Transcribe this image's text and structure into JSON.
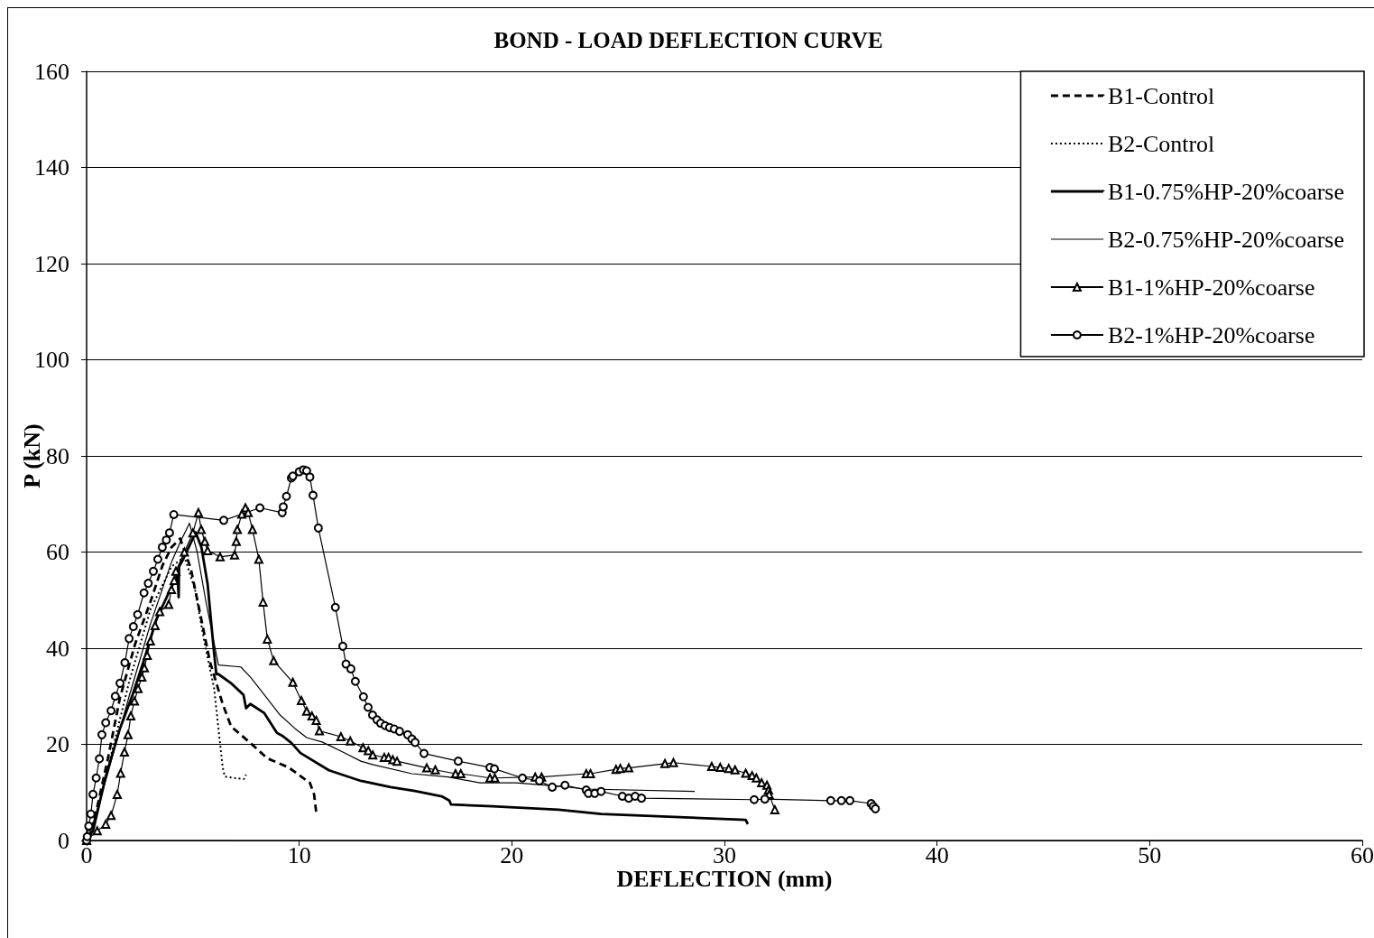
{
  "chart_data": {
    "type": "line",
    "title": "BOND - LOAD DEFLECTION CURVE",
    "xlabel": "DEFLECTION (mm)",
    "ylabel": "P (kN)",
    "xlim": [
      0,
      60
    ],
    "ylim": [
      0,
      160
    ],
    "xticks": [
      0,
      10,
      20,
      30,
      40,
      50,
      60
    ],
    "yticks": [
      0,
      20,
      40,
      60,
      80,
      100,
      120,
      140,
      160
    ],
    "grid": "y",
    "legend": "top right",
    "series": [
      {
        "name": "B1-Control",
        "color": "#000000",
        "line_style": "dashed",
        "marker": "none",
        "x": [
          0,
          0.3,
          1,
          1.57,
          2.29,
          3.0,
          3.56,
          3.99,
          4.4,
          4.9,
          5.4,
          5.8,
          6.4,
          6.8,
          7.7,
          8.5,
          9.5,
          10.5,
          10.7,
          10.8
        ],
        "values": [
          0,
          3,
          17,
          29.7,
          41,
          49.6,
          57.1,
          61,
          62.8,
          56.6,
          45.9,
          37.2,
          28.4,
          23.7,
          20.3,
          17.1,
          15.2,
          12,
          9.6,
          5.8
        ]
      },
      {
        "name": "B2-Control",
        "color": "#000000",
        "line_style": "dotted",
        "marker": "none",
        "x": [
          0,
          0.5,
          1,
          2,
          3,
          4,
          4.6,
          5.1,
          5.55,
          6.0,
          6.2,
          6.4,
          6.5,
          6.96,
          7.4,
          7.5
        ],
        "values": [
          0,
          6,
          15,
          33,
          48,
          57,
          59,
          52.2,
          41,
          31.6,
          23.3,
          15.2,
          13.3,
          13,
          12.8,
          13.7
        ]
      },
      {
        "name": "B1-0.75%HP-20%coarse",
        "color": "#000000",
        "line_style": "solid",
        "marker": "none",
        "x": [
          0,
          0.3,
          0.9,
          1.57,
          2.16,
          2.72,
          3.27,
          3.86,
          4.28,
          4.33,
          4.35,
          4.54,
          5.13,
          5.4,
          5.69,
          5.98,
          6.1,
          6.2,
          6.8,
          7.38,
          7.5,
          7.7,
          8.36,
          8.95,
          9.2,
          9.63,
          10.06,
          11.4,
          12.9,
          14.3,
          15.44,
          16.7,
          17.06,
          17.14,
          19.1,
          22.2,
          24.2,
          31.0,
          31.1
        ],
        "values": [
          0,
          2,
          13.3,
          23.3,
          30.3,
          37.8,
          45.9,
          51.5,
          55.3,
          50.6,
          57,
          58.5,
          64.1,
          61,
          53.4,
          39.7,
          34.6,
          34.6,
          32.7,
          30.3,
          27.5,
          28.4,
          26.5,
          22.4,
          21.8,
          20.3,
          18.2,
          14.6,
          12.4,
          11.1,
          10.3,
          9.2,
          8.3,
          7.5,
          7.1,
          6.4,
          5.5,
          4.3,
          3.4
        ]
      },
      {
        "name": "B2-0.75%HP-20%coarse",
        "color": "#000000",
        "line_style": "solid",
        "marker": "none",
        "x": [
          0,
          0.2,
          1,
          2,
          3,
          4,
          4.4,
          4.84,
          5.2,
          5.6,
          6.2,
          7.25,
          7.7,
          8.36,
          9.1,
          9.8,
          10.35,
          11.07,
          11.5,
          12.05,
          12.9,
          13.45,
          15.3,
          17.0,
          18.5,
          20.2,
          22.2,
          23.5,
          28.6
        ],
        "values": [
          0,
          2,
          14,
          30,
          45,
          58,
          62,
          66,
          60,
          50,
          36.5,
          36.1,
          34,
          30.3,
          26.1,
          23.3,
          21.4,
          20.5,
          19.6,
          18.4,
          16.5,
          15.8,
          13.9,
          13.2,
          12,
          12,
          11.3,
          10.7,
          10.2
        ]
      },
      {
        "name": "B1-1%HP-20%coarse",
        "color": "#000000",
        "line_style": "solid",
        "marker": "triangle",
        "x": [
          0,
          0.5,
          0.9,
          1.15,
          1.44,
          1.6,
          1.78,
          1.95,
          2.08,
          2.25,
          2.42,
          2.6,
          2.72,
          2.85,
          3.0,
          3.22,
          3.44,
          3.86,
          3.99,
          4.12,
          4.2,
          4.6,
          5.0,
          5.26,
          5.39,
          5.56,
          5.69,
          6.28,
          6.96,
          7.04,
          7.09,
          7.3,
          7.47,
          7.6,
          7.8,
          8.1,
          8.3,
          8.5,
          8.8,
          9.7,
          10.1,
          10.35,
          10.6,
          10.8,
          10.95,
          11.96,
          12.4,
          13.0,
          13.25,
          13.46,
          14.0,
          14.2,
          14.4,
          14.6,
          16.0,
          16.4,
          17.35,
          17.6,
          18.97,
          19.2,
          21.1,
          21.4,
          23.5,
          23.7,
          24.9,
          25.1,
          25.5,
          27.2,
          27.6,
          29.4,
          29.8,
          30.2,
          30.5,
          31.0,
          31.3,
          31.5,
          31.75,
          32.0,
          32.07,
          32.1,
          32.37
        ],
        "values": [
          0,
          2,
          3.4,
          5.2,
          9.6,
          14,
          18.4,
          22,
          25.9,
          29,
          31.6,
          34,
          35.9,
          38.5,
          41.5,
          44.7,
          47.6,
          49.1,
          52.2,
          54.1,
          56,
          60,
          64,
          68.2,
          64.7,
          62.2,
          60.3,
          59,
          59.4,
          62.2,
          64.7,
          67.9,
          69.2,
          68.2,
          64.7,
          58.5,
          49.6,
          41.9,
          37.4,
          32.9,
          29.1,
          26.9,
          25.9,
          25,
          22.8,
          21.6,
          20.7,
          19.3,
          18.7,
          17.8,
          17.3,
          17.3,
          16.8,
          16.5,
          15.1,
          14.7,
          13.9,
          13.9,
          13,
          13,
          13.2,
          13.2,
          13.9,
          13.9,
          14.8,
          15,
          15.1,
          16,
          16.2,
          15.4,
          15.2,
          15,
          14.7,
          14,
          13.5,
          13,
          12,
          11.5,
          10.5,
          9.6,
          6.4
        ]
      },
      {
        "name": "B2-1%HP-20%coarse",
        "color": "#000000",
        "line_style": "solid",
        "marker": "circle",
        "x": [
          0,
          0.03,
          0.1,
          0.2,
          0.3,
          0.45,
          0.6,
          0.72,
          0.9,
          1.15,
          1.35,
          1.57,
          1.8,
          2.0,
          2.2,
          2.4,
          2.7,
          2.9,
          3.14,
          3.35,
          3.56,
          3.75,
          3.9,
          4.1,
          6.45,
          8.15,
          9.2,
          9.25,
          9.4,
          9.63,
          9.7,
          10.0,
          10.2,
          10.35,
          10.5,
          10.65,
          10.9,
          11.7,
          12.05,
          12.2,
          12.43,
          12.64,
          13.02,
          13.24,
          13.45,
          13.66,
          13.83,
          14.04,
          14.25,
          14.47,
          14.72,
          15.1,
          15.3,
          15.45,
          15.87,
          17.48,
          18.97,
          19.18,
          20.5,
          21.3,
          21.9,
          22.5,
          23.5,
          23.6,
          23.9,
          24.2,
          25.2,
          25.5,
          25.8,
          26.1,
          31.4,
          31.9,
          35.0,
          35.5,
          35.9,
          36.9,
          37.0,
          37.1
        ],
        "values": [
          0,
          0.8,
          3,
          5.5,
          9.6,
          13,
          17,
          22,
          24.5,
          27,
          30,
          32.7,
          37,
          42,
          44.5,
          47,
          51.5,
          53.5,
          56,
          58.5,
          61,
          62.5,
          64,
          67.8,
          66.6,
          69.2,
          68.2,
          69.4,
          71.6,
          75.4,
          75.8,
          76.7,
          77.1,
          76.9,
          75.6,
          71.8,
          65,
          48.5,
          40.4,
          36.7,
          35.7,
          33.1,
          29.9,
          27.7,
          26.1,
          25.1,
          24.4,
          23.9,
          23.5,
          23.2,
          22.7,
          22,
          21.1,
          20.4,
          18.1,
          16.5,
          15.2,
          14.9,
          13,
          12.4,
          11.1,
          11.5,
          10.5,
          9.8,
          9.8,
          10.2,
          9.2,
          8.8,
          9.2,
          8.8,
          8.5,
          8.6,
          8.3,
          8.3,
          8.3,
          7.7,
          7.1,
          6.6
        ]
      }
    ]
  }
}
